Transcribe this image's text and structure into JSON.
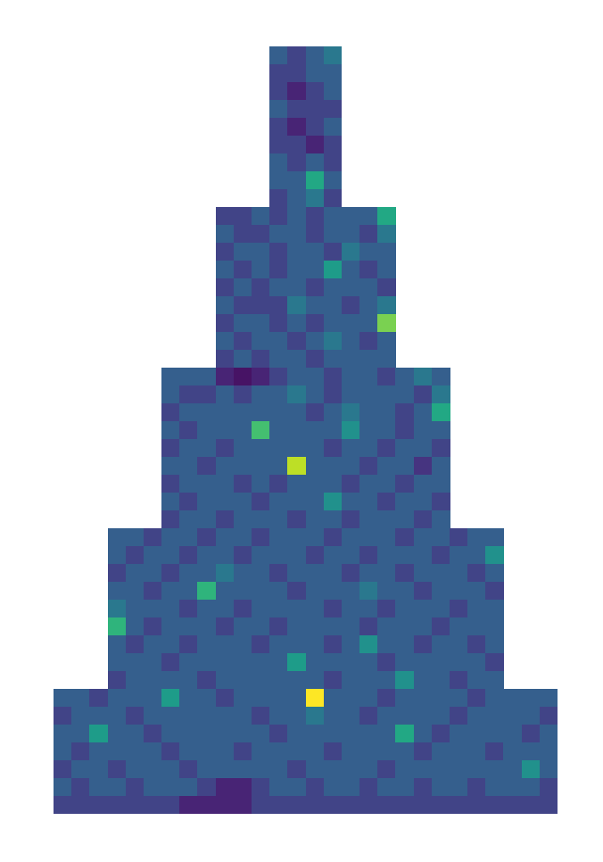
{
  "chart_data": {
    "type": "heatmap",
    "tick_labels": false,
    "color": "viridis",
    "color_range": [
      0,
      10
    ],
    "cells": [
      [
        null,
        null,
        null,
        null,
        null,
        null,
        null,
        null,
        null,
        null,
        null,
        null,
        3,
        2,
        3,
        4,
        null,
        null,
        null,
        null,
        null,
        null,
        null,
        null,
        null,
        null,
        null,
        null
      ],
      [
        null,
        null,
        null,
        null,
        null,
        null,
        null,
        null,
        null,
        null,
        null,
        null,
        2,
        2,
        3,
        3,
        null,
        null,
        null,
        null,
        null,
        null,
        null,
        null,
        null,
        null,
        null,
        null
      ],
      [
        null,
        null,
        null,
        null,
        null,
        null,
        null,
        null,
        null,
        null,
        null,
        null,
        2,
        1,
        2,
        3,
        null,
        null,
        null,
        null,
        null,
        null,
        null,
        null,
        null,
        null,
        null,
        null
      ],
      [
        null,
        null,
        null,
        null,
        null,
        null,
        null,
        null,
        null,
        null,
        null,
        null,
        3,
        2,
        2,
        2,
        null,
        null,
        null,
        null,
        null,
        null,
        null,
        null,
        null,
        null,
        null,
        null
      ],
      [
        null,
        null,
        null,
        null,
        null,
        null,
        null,
        null,
        null,
        null,
        null,
        null,
        2,
        1,
        2,
        3,
        null,
        null,
        null,
        null,
        null,
        null,
        null,
        null,
        null,
        null,
        null,
        null
      ],
      [
        null,
        null,
        null,
        null,
        null,
        null,
        null,
        null,
        null,
        null,
        null,
        null,
        2,
        2,
        1,
        2,
        null,
        null,
        null,
        null,
        null,
        null,
        null,
        null,
        null,
        null,
        null,
        null
      ],
      [
        null,
        null,
        null,
        null,
        null,
        null,
        null,
        null,
        null,
        null,
        null,
        null,
        3,
        2,
        3,
        2,
        null,
        null,
        null,
        null,
        null,
        null,
        null,
        null,
        null,
        null,
        null,
        null
      ],
      [
        null,
        null,
        null,
        null,
        null,
        null,
        null,
        null,
        null,
        null,
        null,
        null,
        3,
        3,
        6,
        3,
        null,
        null,
        null,
        null,
        null,
        null,
        null,
        null,
        null,
        null,
        null,
        null
      ],
      [
        null,
        null,
        null,
        null,
        null,
        null,
        null,
        null,
        null,
        null,
        null,
        null,
        2,
        3,
        4,
        2,
        null,
        null,
        null,
        null,
        null,
        null,
        null,
        null,
        null,
        null,
        null,
        null
      ],
      [
        null,
        null,
        null,
        null,
        null,
        null,
        null,
        null,
        null,
        2,
        2,
        3,
        2,
        3,
        2,
        3,
        3,
        3,
        6,
        null,
        null,
        null,
        null,
        null,
        null,
        null,
        null,
        null
      ],
      [
        null,
        null,
        null,
        null,
        null,
        null,
        null,
        null,
        null,
        3,
        2,
        2,
        3,
        3,
        2,
        3,
        3,
        2,
        4,
        null,
        null,
        null,
        null,
        null,
        null,
        null,
        null,
        null
      ],
      [
        null,
        null,
        null,
        null,
        null,
        null,
        null,
        null,
        null,
        2,
        3,
        3,
        2,
        3,
        3,
        2,
        4,
        3,
        3,
        null,
        null,
        null,
        null,
        null,
        null,
        null,
        null,
        null
      ],
      [
        null,
        null,
        null,
        null,
        null,
        null,
        null,
        null,
        null,
        3,
        2,
        3,
        2,
        3,
        3,
        5.5,
        3,
        2,
        3,
        null,
        null,
        null,
        null,
        null,
        null,
        null,
        null,
        null
      ],
      [
        null,
        null,
        null,
        null,
        null,
        null,
        null,
        null,
        null,
        2,
        3,
        2,
        3,
        3,
        2,
        3,
        3,
        3,
        2,
        null,
        null,
        null,
        null,
        null,
        null,
        null,
        null,
        null
      ],
      [
        null,
        null,
        null,
        null,
        null,
        null,
        null,
        null,
        null,
        3,
        2,
        2,
        2,
        4,
        3,
        3,
        2,
        3,
        4,
        null,
        null,
        null,
        null,
        null,
        null,
        null,
        null,
        null
      ],
      [
        null,
        null,
        null,
        null,
        null,
        null,
        null,
        null,
        null,
        2,
        3,
        3,
        2,
        3,
        2,
        3,
        3,
        3,
        8,
        null,
        null,
        null,
        null,
        null,
        null,
        null,
        null,
        null
      ],
      [
        null,
        null,
        null,
        null,
        null,
        null,
        null,
        null,
        null,
        3,
        2,
        3,
        3,
        2,
        3,
        4,
        3,
        2,
        3,
        null,
        null,
        null,
        null,
        null,
        null,
        null,
        null,
        null
      ],
      [
        null,
        null,
        null,
        null,
        null,
        null,
        null,
        null,
        null,
        2,
        3,
        2,
        3,
        3,
        2,
        3,
        3,
        3,
        3,
        null,
        null,
        null,
        null,
        null,
        null,
        null,
        null,
        null
      ],
      [
        null,
        null,
        null,
        null,
        null,
        null,
        3,
        3,
        3,
        1,
        0.5,
        1,
        2,
        3,
        3,
        2,
        3,
        3,
        2,
        3,
        4,
        3,
        null,
        null,
        null,
        null,
        null,
        null
      ],
      [
        null,
        null,
        null,
        null,
        null,
        null,
        3,
        2,
        2,
        3,
        2,
        3,
        3,
        4,
        3,
        2,
        3,
        3,
        3,
        3,
        2,
        4,
        null,
        null,
        null,
        null,
        null,
        null
      ],
      [
        null,
        null,
        null,
        null,
        null,
        null,
        2,
        3,
        3,
        3,
        3,
        3,
        3,
        3,
        2,
        3,
        4,
        3,
        3,
        2,
        3,
        6,
        null,
        null,
        null,
        null,
        null,
        null
      ],
      [
        null,
        null,
        null,
        null,
        null,
        null,
        3,
        2,
        3,
        3,
        3,
        7,
        3,
        3,
        3,
        3,
        5,
        3,
        3,
        2,
        3,
        3,
        null,
        null,
        null,
        null,
        null,
        null
      ],
      [
        null,
        null,
        null,
        null,
        null,
        null,
        2,
        3,
        3,
        2,
        3,
        3,
        3,
        3,
        3,
        2,
        3,
        3,
        2,
        3,
        3,
        2,
        null,
        null,
        null,
        null,
        null,
        null
      ],
      [
        null,
        null,
        null,
        null,
        null,
        null,
        3,
        3,
        2,
        3,
        3,
        3,
        3,
        9,
        3,
        3,
        3,
        2,
        3,
        3,
        1.5,
        3,
        null,
        null,
        null,
        null,
        null,
        null
      ],
      [
        null,
        null,
        null,
        null,
        null,
        null,
        2,
        3,
        3,
        3,
        2,
        3,
        2,
        3,
        3,
        3,
        2,
        3,
        3,
        2,
        3,
        3,
        null,
        null,
        null,
        null,
        null,
        null
      ],
      [
        null,
        null,
        null,
        null,
        null,
        null,
        3,
        2,
        3,
        3,
        3,
        2,
        3,
        3,
        3,
        5,
        3,
        3,
        2,
        3,
        3,
        2,
        null,
        null,
        null,
        null,
        null,
        null
      ],
      [
        null,
        null,
        null,
        null,
        null,
        null,
        2,
        3,
        3,
        2,
        3,
        3,
        3,
        2,
        3,
        3,
        2,
        3,
        3,
        3,
        2,
        3,
        null,
        null,
        null,
        null,
        null,
        null
      ],
      [
        null,
        null,
        null,
        3,
        3,
        2,
        3,
        3,
        2,
        3,
        3,
        2,
        3,
        3,
        3,
        2,
        3,
        3,
        3,
        2,
        3,
        3,
        2,
        3,
        3,
        null,
        null,
        null
      ],
      [
        null,
        null,
        null,
        3,
        2,
        3,
        3,
        2,
        3,
        3,
        2,
        3,
        3,
        3,
        2,
        3,
        3,
        2,
        3,
        3,
        3,
        2,
        3,
        3,
        5,
        null,
        null,
        null
      ],
      [
        null,
        null,
        null,
        2,
        3,
        3,
        2,
        3,
        3,
        4,
        3,
        3,
        2,
        3,
        3,
        3,
        2,
        3,
        3,
        2,
        3,
        3,
        3,
        2,
        3,
        null,
        null,
        null
      ],
      [
        null,
        null,
        null,
        3,
        3,
        2,
        3,
        3,
        6.5,
        3,
        3,
        3,
        3,
        2,
        3,
        3,
        3,
        4,
        3,
        3,
        2,
        3,
        3,
        3,
        2,
        null,
        null,
        null
      ],
      [
        null,
        null,
        null,
        4,
        3,
        3,
        3,
        2,
        3,
        3,
        2,
        3,
        3,
        3,
        3,
        2,
        3,
        3,
        2,
        3,
        3,
        3,
        2,
        3,
        3,
        null,
        null,
        null
      ],
      [
        null,
        null,
        null,
        6.5,
        3,
        2,
        3,
        3,
        3,
        2,
        3,
        3,
        2,
        3,
        3,
        3,
        3,
        2,
        3,
        3,
        3,
        2,
        3,
        3,
        3,
        null,
        null,
        null
      ],
      [
        null,
        null,
        null,
        3,
        2,
        3,
        3,
        2,
        3,
        3,
        3,
        2,
        3,
        3,
        3,
        2,
        3,
        5,
        3,
        3,
        2,
        3,
        3,
        2,
        3,
        null,
        null,
        null
      ],
      [
        null,
        null,
        null,
        3,
        3,
        3,
        2,
        3,
        3,
        3,
        3,
        3,
        3,
        5.5,
        3,
        3,
        3,
        3,
        2,
        3,
        3,
        3,
        3,
        3,
        2,
        null,
        null,
        null
      ],
      [
        null,
        null,
        null,
        2,
        3,
        3,
        3,
        3,
        2,
        3,
        3,
        3,
        3,
        3,
        3,
        2,
        3,
        3,
        3,
        5,
        3,
        3,
        2,
        3,
        3,
        null,
        null,
        null
      ],
      [
        3,
        3,
        2,
        3,
        3,
        3,
        5.5,
        3,
        3,
        2,
        3,
        3,
        3,
        3,
        10,
        3,
        3,
        3,
        2,
        3,
        3,
        3,
        3,
        2,
        3,
        3,
        3,
        3
      ],
      [
        2,
        3,
        3,
        3,
        2,
        3,
        3,
        3,
        3,
        3,
        3,
        2,
        3,
        3,
        4,
        3,
        3,
        2,
        3,
        3,
        3,
        3,
        2,
        3,
        3,
        3,
        3,
        2
      ],
      [
        3,
        3,
        5.5,
        3,
        3,
        2,
        3,
        3,
        3,
        3,
        3,
        3,
        2,
        3,
        3,
        3,
        3,
        3,
        3,
        6,
        3,
        2,
        3,
        3,
        3,
        3,
        2,
        3
      ],
      [
        3,
        2,
        3,
        3,
        3,
        3,
        2,
        3,
        3,
        3,
        2,
        3,
        3,
        3,
        3,
        2,
        3,
        3,
        3,
        3,
        2,
        3,
        3,
        3,
        2,
        3,
        3,
        3
      ],
      [
        2,
        3,
        3,
        2,
        3,
        3,
        3,
        2,
        3,
        3,
        3,
        3,
        3,
        2,
        3,
        3,
        3,
        3,
        2,
        3,
        3,
        3,
        3,
        3,
        3,
        3,
        5,
        3
      ],
      [
        3,
        2,
        3,
        3,
        2,
        3,
        3,
        3,
        2,
        1,
        1,
        2,
        3,
        3,
        2,
        3,
        3,
        2,
        3,
        3,
        2,
        3,
        3,
        2,
        3,
        3,
        3,
        2
      ],
      [
        2,
        2,
        2,
        2,
        2,
        2,
        2,
        1,
        1,
        1,
        1,
        2,
        2,
        2,
        2,
        2,
        2,
        2,
        2,
        2,
        2,
        2,
        2,
        2,
        2,
        2,
        2,
        2
      ]
    ]
  }
}
